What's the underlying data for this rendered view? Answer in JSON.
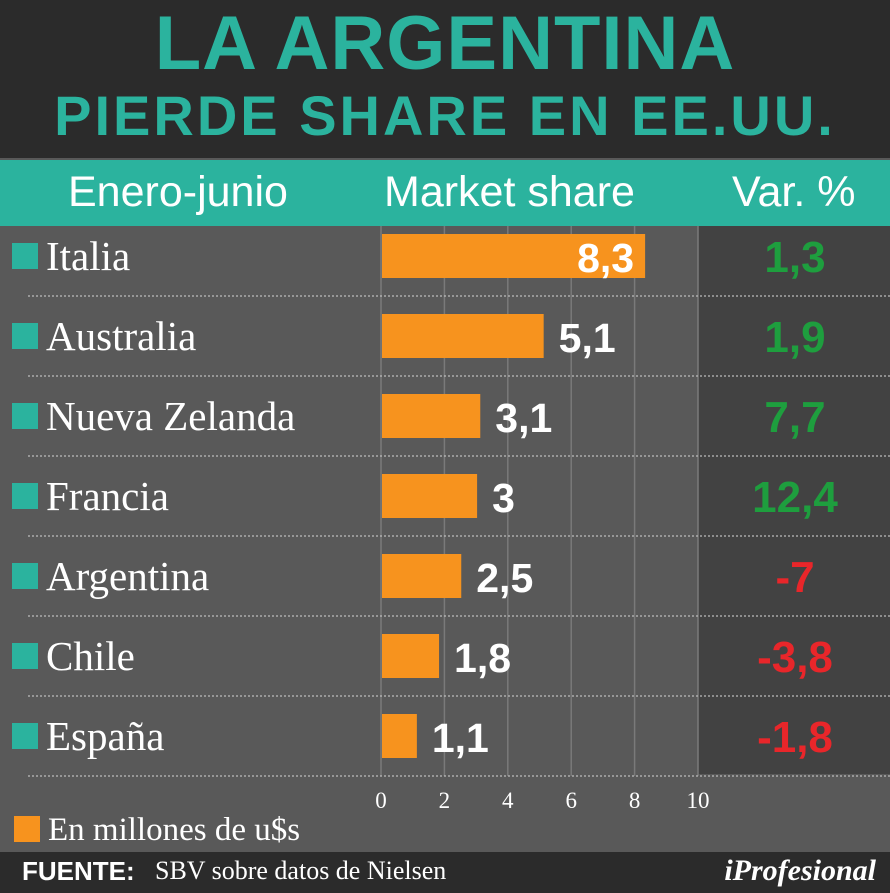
{
  "title_line1": "LA ARGENTINA",
  "title_line2": "PIERDE SHARE EN EE.UU.",
  "columns": {
    "period": "Enero-junio",
    "share": "Market share",
    "var": "Var. %"
  },
  "legend_label": "En millones de u$s",
  "source_label": "FUENTE:",
  "source_text": "SBV sobre datos de Nielsen",
  "logo": "iProfesional",
  "colors": {
    "header_bg": "#2b2b2b",
    "title": "#2bb39e",
    "bar": "#f7931e",
    "positive": "#1e9e3e",
    "negative": "#e8262a",
    "marker": "#2bb39e"
  },
  "chart_data": {
    "type": "bar",
    "orientation": "horizontal",
    "categories": [
      "Italia",
      "Australia",
      "Nueva Zelanda",
      "Francia",
      "Argentina",
      "Chile",
      "España"
    ],
    "values": [
      8.3,
      5.1,
      3.1,
      3,
      2.5,
      1.8,
      1.1
    ],
    "value_labels": [
      "8,3",
      "5,1",
      "3,1",
      "3",
      "2,5",
      "1,8",
      "1,1"
    ],
    "var_labels": [
      "1,3",
      "1,9",
      "7,7",
      "12,4",
      "-7",
      "-3,8",
      "-1,8"
    ],
    "var_values": [
      1.3,
      1.9,
      7.7,
      12.4,
      -7,
      -3.8,
      -1.8
    ],
    "xlim": [
      0,
      10
    ],
    "x_ticks": [
      0,
      2,
      4,
      6,
      8,
      10
    ],
    "grid": true
  }
}
